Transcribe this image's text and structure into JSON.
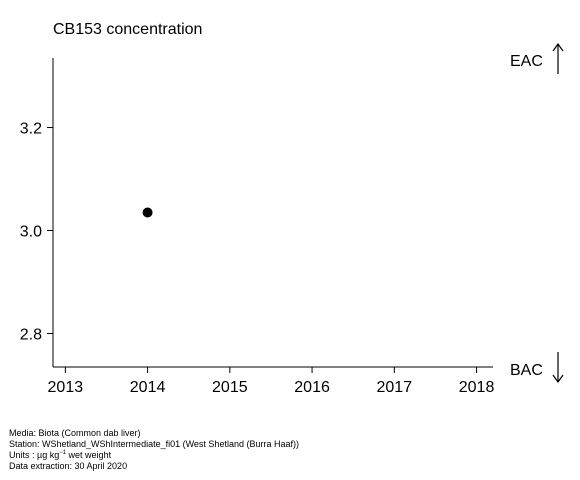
{
  "chart_data": {
    "type": "scatter",
    "title": "CB153 concentration",
    "xlabel": "",
    "ylabel": "",
    "xlim": [
      2012.85,
      2018.2
    ],
    "ylim": [
      2.735,
      3.335
    ],
    "x_ticks": [
      2013,
      2014,
      2015,
      2016,
      2017,
      2018
    ],
    "y_ticks": [
      2.8,
      3.0,
      3.2
    ],
    "y_tick_labels": [
      "2.8",
      "3.0",
      "3.2"
    ],
    "points": [
      {
        "x": 2014,
        "y": 3.035
      }
    ],
    "point_color": "#000000",
    "grid": false,
    "threshold_labels": {
      "upper": "EAC",
      "lower": "BAC"
    },
    "arrow_icons": {
      "upper": "arrow-up-icon",
      "lower": "arrow-down-icon"
    }
  },
  "footer": {
    "media": "Media: Biota (Common dab liver)",
    "station": "Station: WShetland_WShIntermediate_fi01 (West Shetland (Burra Haaf))",
    "units_prefix": "Units : µg kg",
    "units_exp": "−1",
    "units_suffix": " wet weight",
    "extraction": "Data extraction: 30 April 2020"
  }
}
